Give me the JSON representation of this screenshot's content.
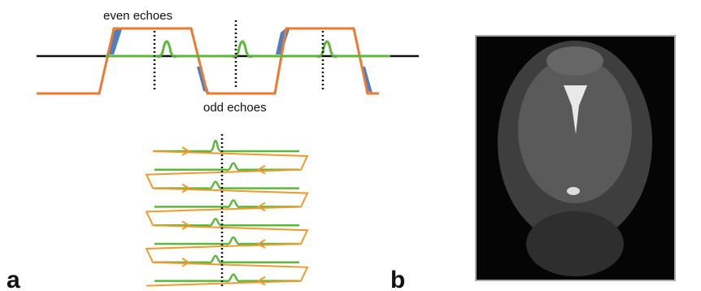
{
  "labels": {
    "even": "even echoes",
    "odd": "odd echoes"
  },
  "panels": [
    "a",
    "b"
  ]
}
